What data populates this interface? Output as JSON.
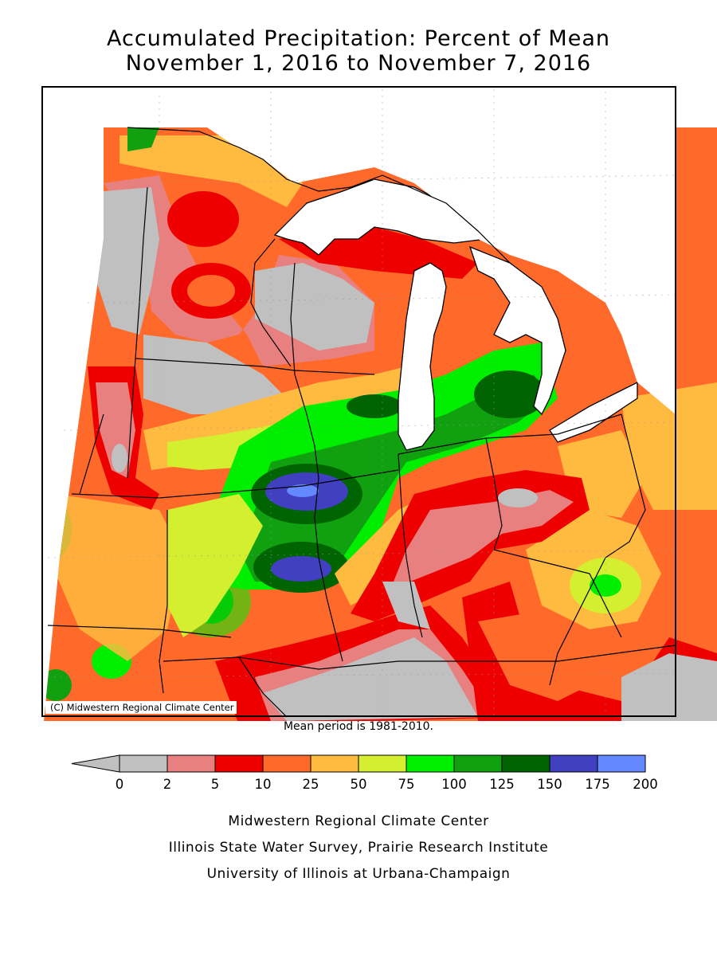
{
  "title_line1": "Accumulated Precipitation: Percent of Mean",
  "title_line2": "November 1, 2016 to November 7, 2016",
  "copyright": "(C) Midwestern Regional Climate Center",
  "mean_period": "Mean period is 1981-2010.",
  "legend": {
    "ticks": [
      "0",
      "2",
      "5",
      "10",
      "25",
      "50",
      "75",
      "100",
      "125",
      "150",
      "175",
      "200"
    ],
    "classes": [
      {
        "range": "<0",
        "color": "#c0c0c0"
      },
      {
        "range": "0-2",
        "color": "#c0c0c0"
      },
      {
        "range": "2-5",
        "color": "#e88080"
      },
      {
        "range": "5-10",
        "color": "#ee0000"
      },
      {
        "range": "10-25",
        "color": "#ff6a2a"
      },
      {
        "range": "25-50",
        "color": "#ffba40"
      },
      {
        "range": "50-75",
        "color": "#d4ef30"
      },
      {
        "range": "75-100",
        "color": "#00ee00"
      },
      {
        "range": "100-125",
        "color": "#10a010"
      },
      {
        "range": "125-150",
        "color": "#006400"
      },
      {
        "range": "150-175",
        "color": "#4040c0"
      },
      {
        "range": "175-200",
        "color": "#6488ff"
      }
    ]
  },
  "credits": [
    "Midwestern Regional Climate Center",
    "Illinois State Water Survey, Prairie Research Institute",
    "University of Illinois at Urbana-Champaign"
  ]
}
